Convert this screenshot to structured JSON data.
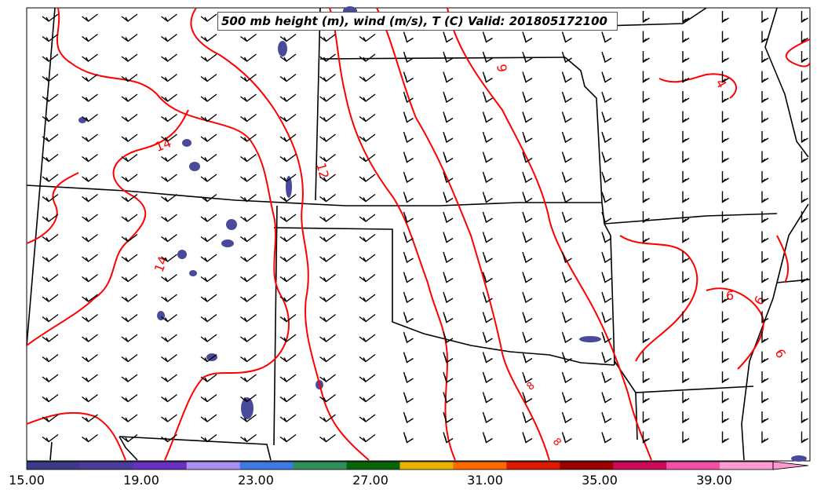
{
  "title": "500 mb height (m), wind (m/s), T (C) Valid: 201805172100",
  "contour_labels": [
    "14",
    "14",
    "12",
    "9",
    "4",
    "6",
    "6",
    "6",
    "8",
    "8"
  ],
  "colors": {
    "temperature_contour": "#ff0000",
    "state_borders": "#000000",
    "wind_barbs": "#000000",
    "height_fill": "#4a4a9c"
  },
  "colorbar": {
    "tick_labels": [
      "15.00",
      "19.00",
      "23.00",
      "27.00",
      "31.00",
      "35.00",
      "39.00"
    ],
    "segment_colors": [
      "#3b3b8a",
      "#4b3c9a",
      "#6a2fbf",
      "#a890f0",
      "#3e78e0",
      "#2e8e5c",
      "#086408",
      "#e8b400",
      "#ff6a00",
      "#dd1a00",
      "#9a0000",
      "#cc0a5a",
      "#f050a8",
      "#ff9ad0"
    ]
  }
}
